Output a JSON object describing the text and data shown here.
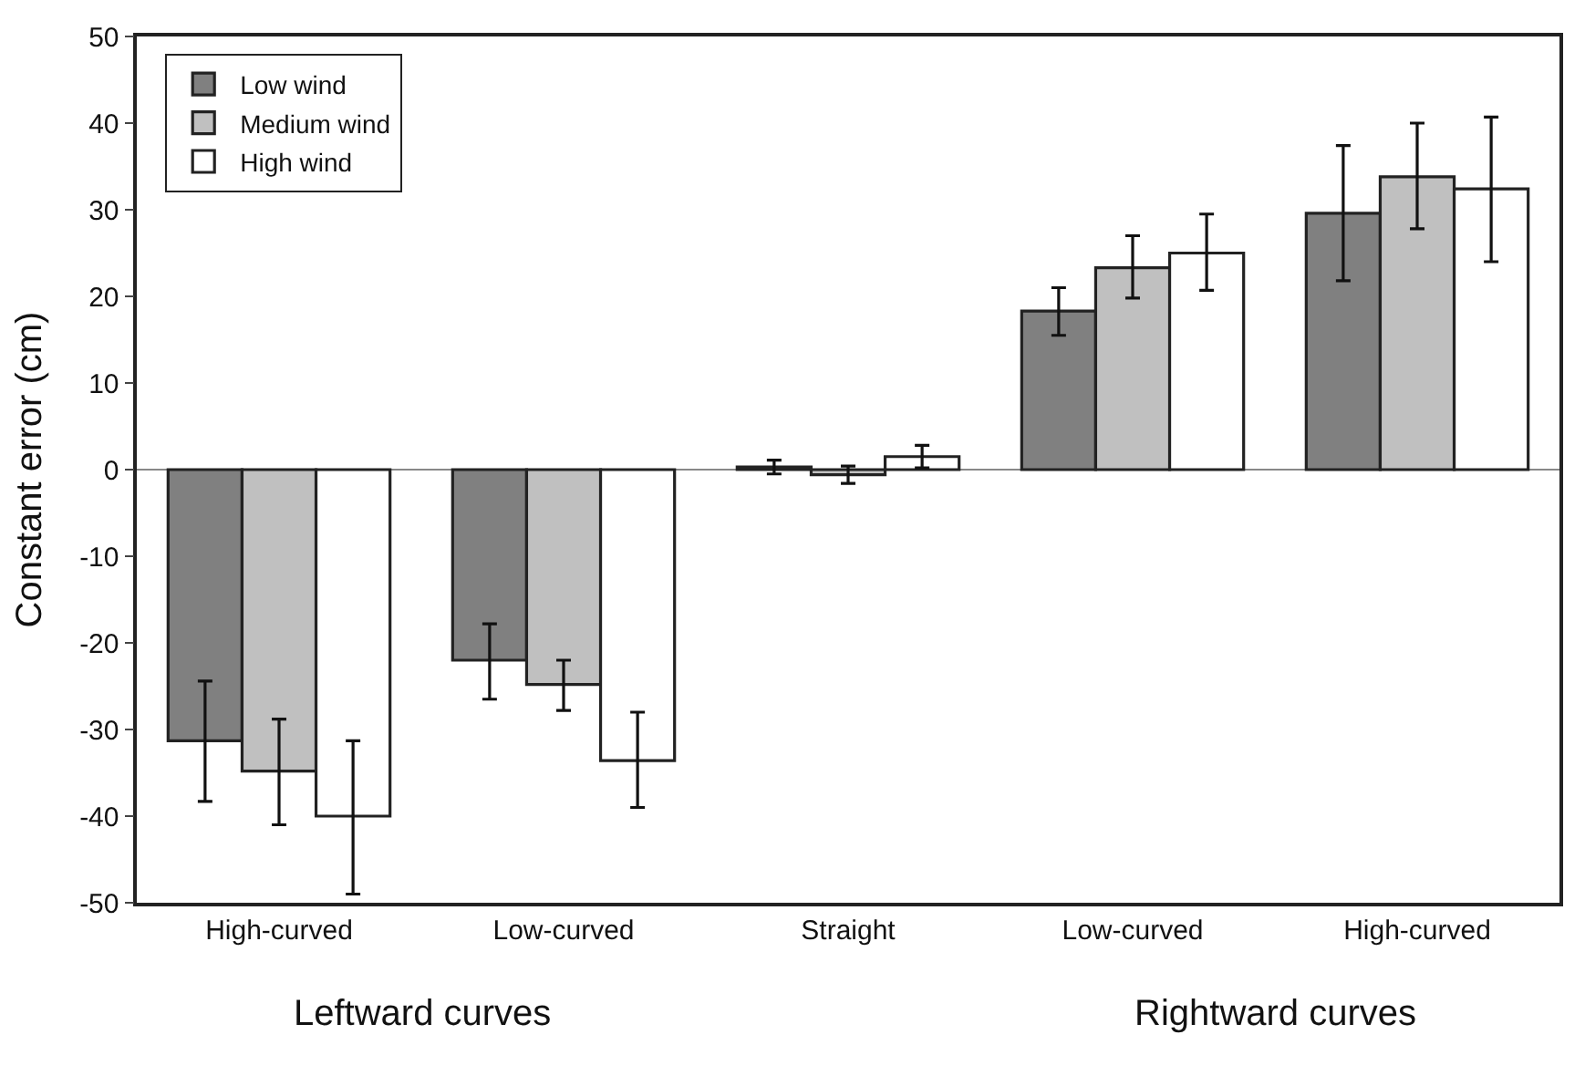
{
  "chart_data": {
    "type": "bar",
    "ylabel": "Constant error (cm)",
    "categories": [
      "High-curved",
      "Low-curved",
      "Straight",
      "Low-curved",
      "High-curved"
    ],
    "series": [
      {
        "name": "Low wind",
        "color": "#808080",
        "values": [
          -31.3,
          -22,
          0.3,
          18.3,
          29.6
        ],
        "errors": [
          [
            -38.3,
            -24.4
          ],
          [
            -26.5,
            -17.8
          ],
          [
            -0.5,
            1.1
          ],
          [
            15.5,
            21
          ],
          [
            21.8,
            37.4
          ]
        ]
      },
      {
        "name": "Medium wind",
        "color": "#c0c0c0",
        "values": [
          -34.8,
          -24.8,
          -0.6,
          23.3,
          33.8
        ],
        "errors": [
          [
            -41,
            -28.8
          ],
          [
            -27.8,
            -22
          ],
          [
            -1.6,
            0.4
          ],
          [
            19.8,
            27
          ],
          [
            27.8,
            40
          ]
        ]
      },
      {
        "name": "High wind",
        "color": "#ffffff",
        "values": [
          -40,
          -33.6,
          1.5,
          25,
          32.4
        ],
        "errors": [
          [
            -49,
            -31.3
          ],
          [
            -39,
            -28
          ],
          [
            0.2,
            2.8
          ],
          [
            20.7,
            29.5
          ],
          [
            24,
            40.7
          ]
        ]
      }
    ],
    "annotations": [
      "Leftward curves",
      "Rightward curves"
    ],
    "ylim": [
      -50,
      50
    ],
    "yticks": [
      -50,
      -40,
      -30,
      -20,
      -10,
      0,
      10,
      20,
      30,
      40,
      50
    ],
    "ref_lines": [
      {
        "axis": "y",
        "value": 0,
        "color": "#888888"
      }
    ],
    "grid": false,
    "legend": "top left"
  }
}
